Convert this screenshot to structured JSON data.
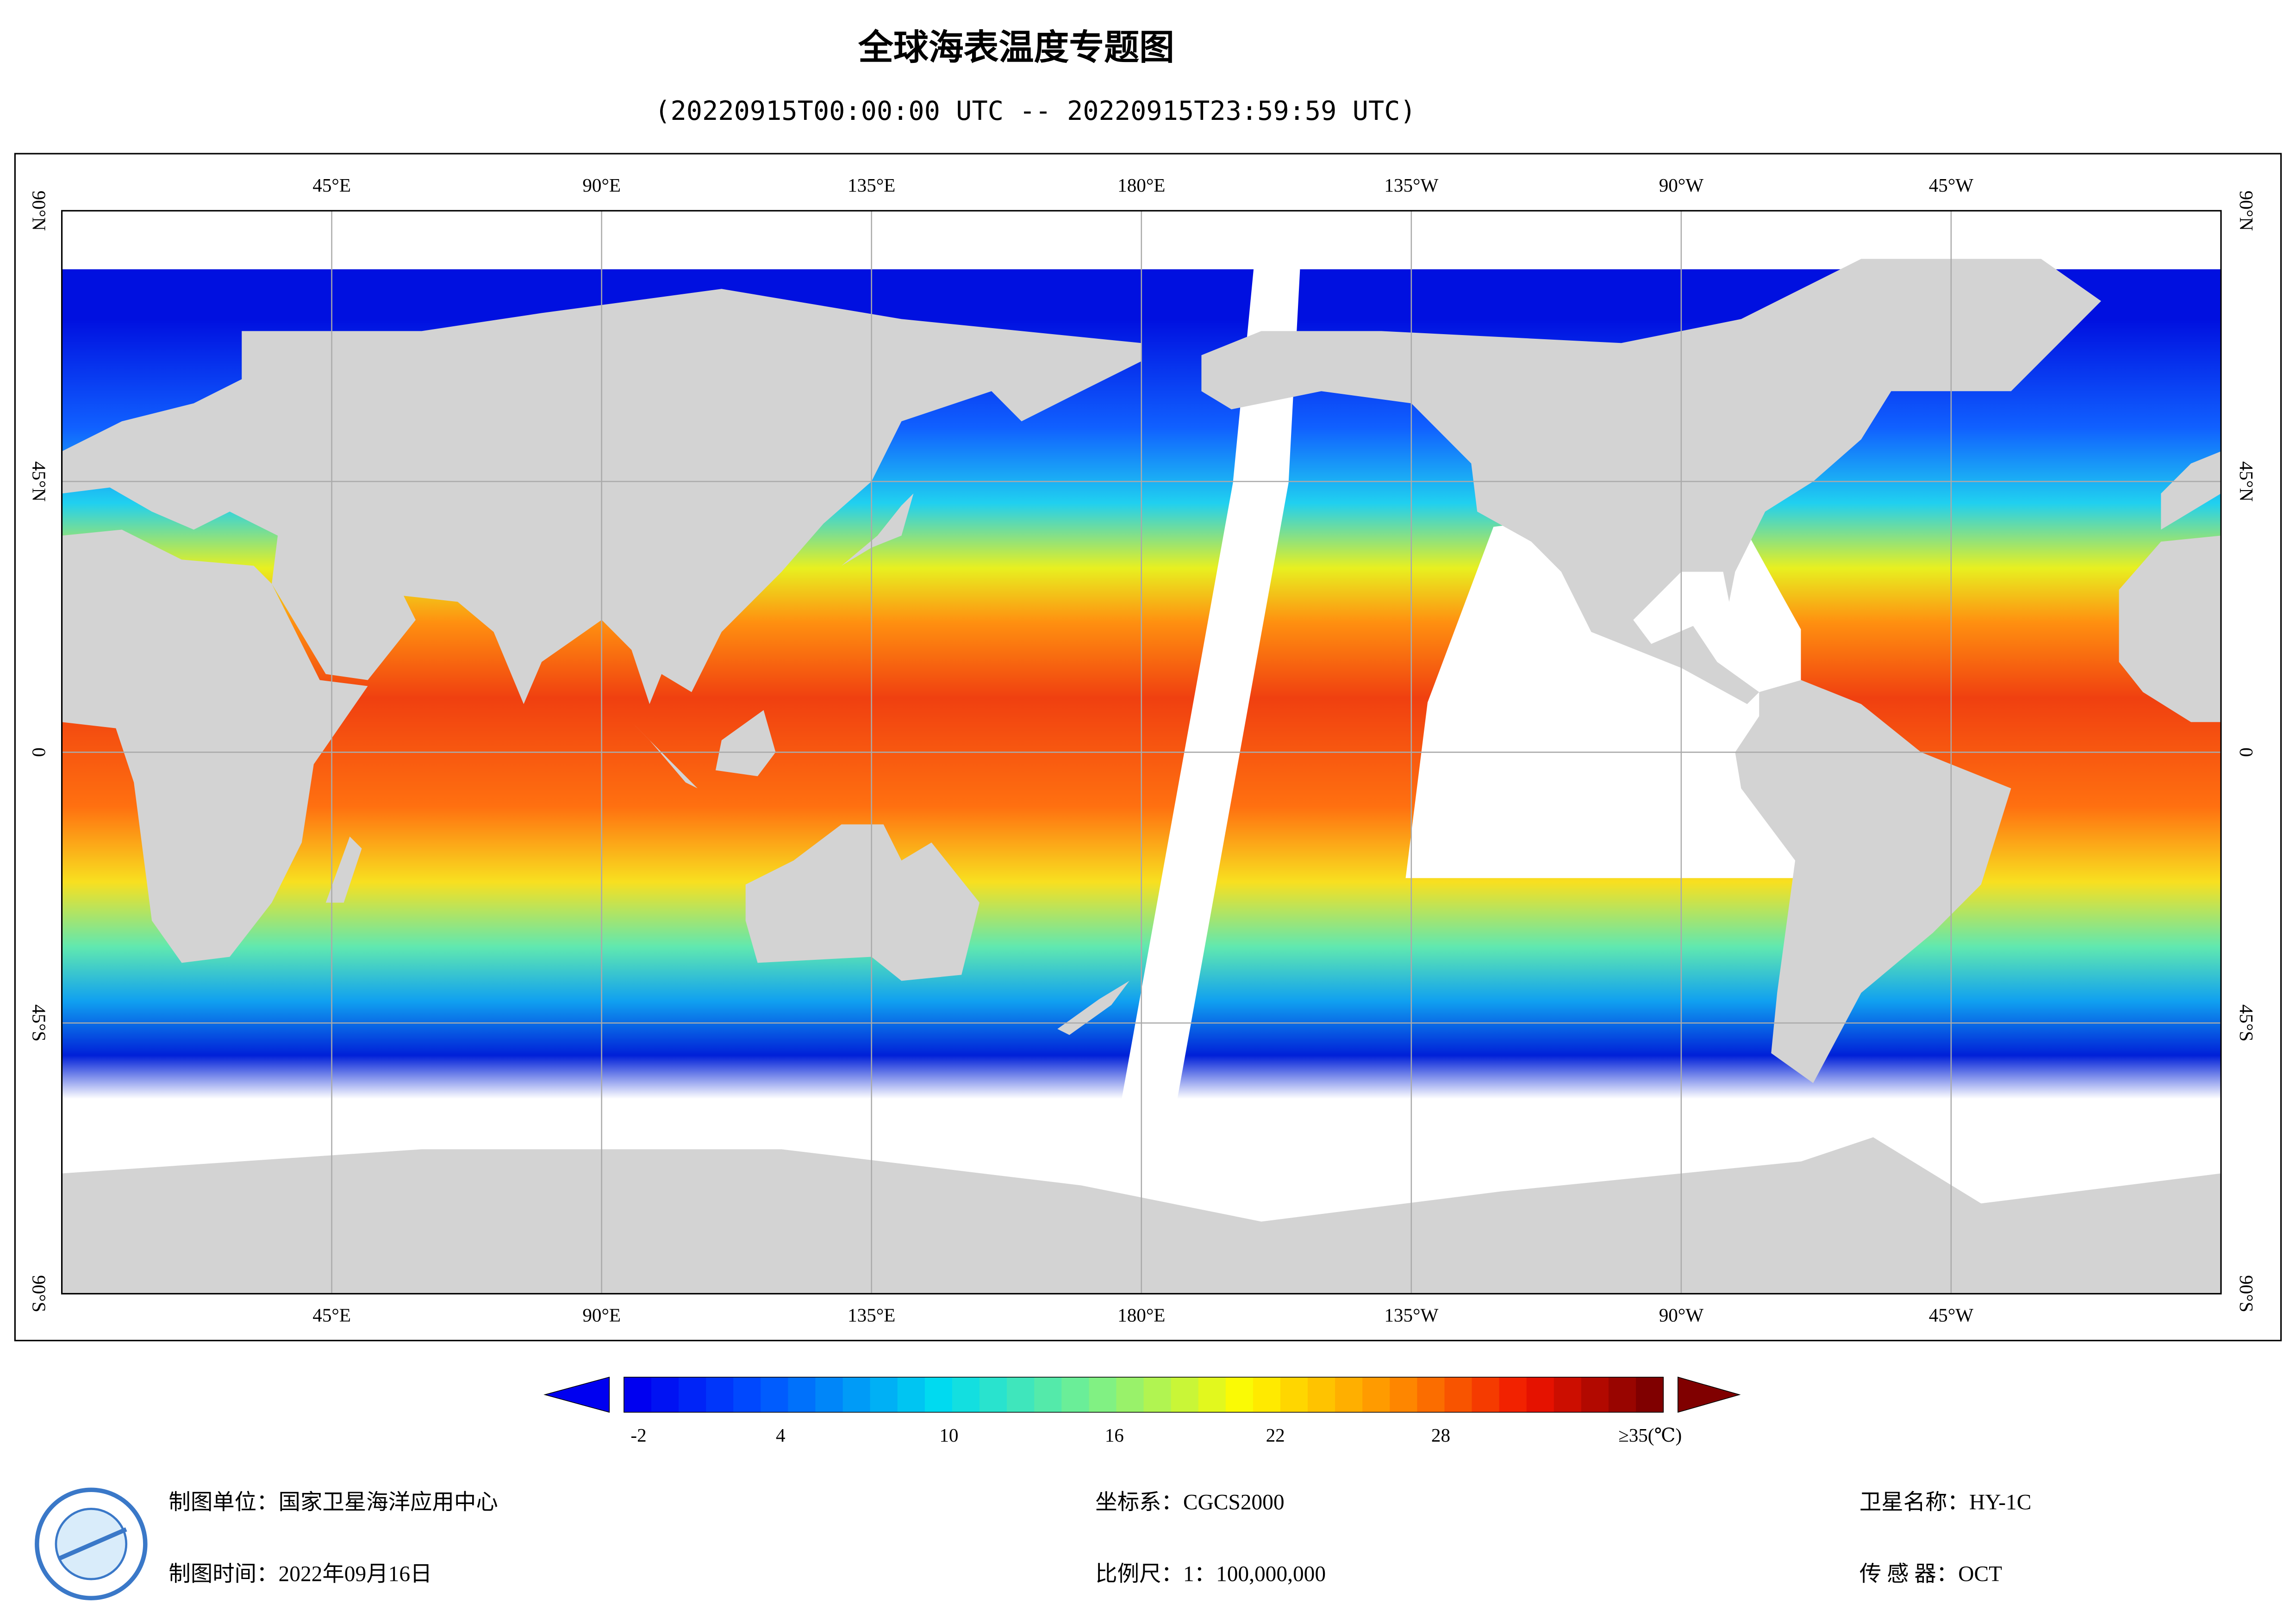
{
  "header": {
    "title": "全球海表温度专题图",
    "subtitle": "(20220915T00:00:00 UTC -- 20220915T23:59:59 UTC)"
  },
  "map": {
    "lon_labels": [
      "45°E",
      "90°E",
      "135°E",
      "180°E",
      "135°W",
      "90°W",
      "45°W"
    ],
    "lat_labels": [
      "90°N",
      "45°N",
      "0",
      "45°S",
      "90°S"
    ]
  },
  "colorbar": {
    "labels": [
      "-2",
      "4",
      "10",
      "16",
      "22",
      "28",
      "≥35(℃)"
    ]
  },
  "footer": {
    "unit": "制图单位：国家卫星海洋应用中心",
    "date": "制图时间：2022年09月16日",
    "crs": "坐标系：CGCS2000",
    "scale": "比例尺：1：100,000,000",
    "satellite": "卫星名称：HY-1C",
    "sensor": "传 感 器：OCT"
  }
}
